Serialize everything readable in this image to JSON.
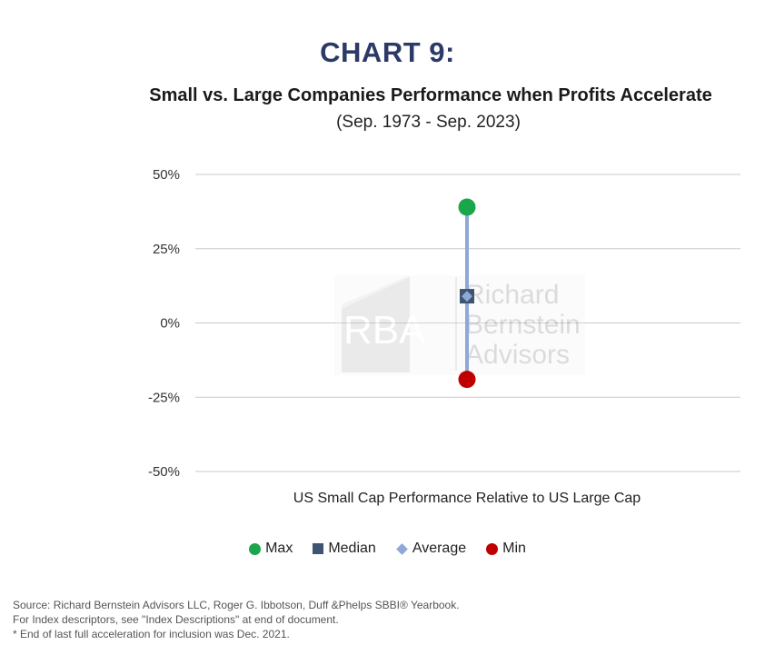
{
  "header": {
    "heading": "CHART 9:",
    "title": "Small vs. Large Companies Performance when Profits Accelerate",
    "subtitle": "(Sep. 1973 -  Sep. 2023)"
  },
  "watermark": {
    "logo": "RBA",
    "line1": "Richard",
    "line2": "Bernstein",
    "line3": "Advisors"
  },
  "chart_data": {
    "type": "scatter",
    "categories": [
      "US Small Cap Performance Relative to US Large Cap"
    ],
    "xlabel": "US Small Cap Performance Relative to US Large Cap",
    "ylabel": "",
    "ylim": [
      -50,
      50
    ],
    "yticks": [
      50,
      25,
      0,
      -25,
      -50
    ],
    "ytick_labels": [
      "50%",
      "25%",
      "0%",
      "-25%",
      "-50%"
    ],
    "grid": true,
    "legend_position": "bottom",
    "series": [
      {
        "name": "Max",
        "marker": "circle",
        "color": "#1aa64a",
        "values": [
          39
        ]
      },
      {
        "name": "Median",
        "marker": "square",
        "color": "#3f5470",
        "values": [
          9
        ]
      },
      {
        "name": "Average",
        "marker": "diamond",
        "color": "#8fa8d8",
        "values": [
          9
        ]
      },
      {
        "name": "Min",
        "marker": "circle",
        "color": "#c00000",
        "values": [
          -19
        ]
      }
    ],
    "range_line_color": "#8fa8d8"
  },
  "footer": {
    "line1": "Source: Richard Bernstein Advisors LLC, Roger G. Ibbotson, Duff &Phelps SBBI® Yearbook.",
    "line2": "For Index descriptors, see \"Index Descriptions\" at end of document.",
    "line3": "* End of last full acceleration for inclusion was Dec. 2021."
  }
}
